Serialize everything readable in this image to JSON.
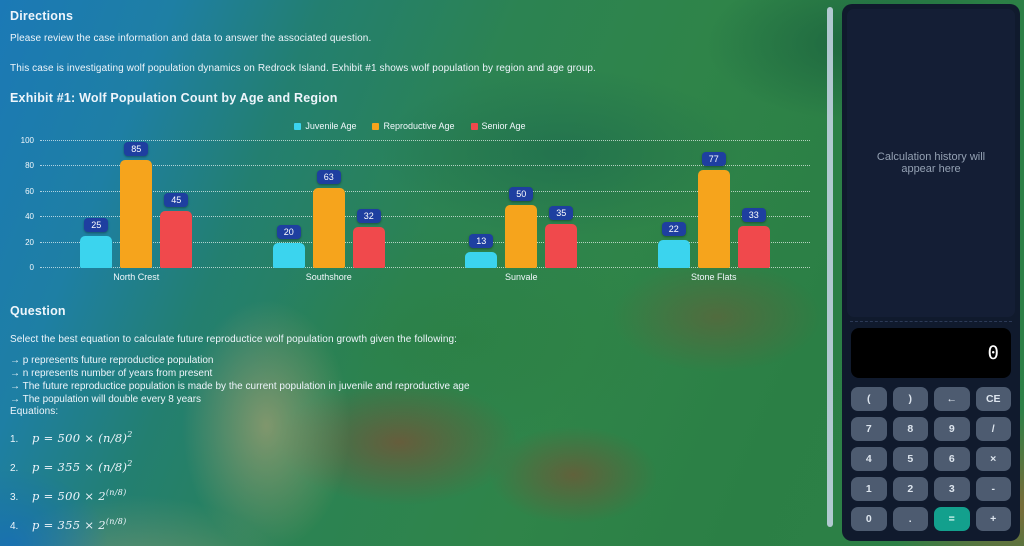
{
  "directions": {
    "title": "Directions",
    "line1": "Please review the case information and data to answer the associated question.",
    "line2": "This case is investigating wolf population dynamics on Redrock Island. Exhibit #1 shows wolf population by region and age group."
  },
  "exhibit": {
    "title": "Exhibit #1: Wolf Population Count by Age and Region"
  },
  "chart_data": {
    "type": "bar",
    "title": "Exhibit #1: Wolf Population Count by Age and Region",
    "categories": [
      "North Crest",
      "Southshore",
      "Sunvale",
      "Stone Flats"
    ],
    "series": [
      {
        "name": "Juvenile Age",
        "color": "#3bd4ee",
        "values": [
          25,
          20,
          13,
          22
        ]
      },
      {
        "name": "Reproductive Age",
        "color": "#f6a41c",
        "values": [
          85,
          63,
          50,
          77
        ]
      },
      {
        "name": "Senior Age",
        "color": "#f0494c",
        "values": [
          45,
          32,
          35,
          33
        ]
      }
    ],
    "ylim": [
      0,
      100
    ],
    "yticks": [
      0,
      20,
      40,
      60,
      80,
      100
    ],
    "grid": "horizontal-dotted",
    "legend_position": "top",
    "value_label_badge_color": "#1e3fa0"
  },
  "question": {
    "title": "Question",
    "prompt": "Select the best equation to calculate future reproductice wolf population growth given the following:",
    "bullets": [
      "→ p represents future reproductice population",
      "→ n represents number of years from present",
      "→ The future reproductice population is made by the current population in juvenile and reproductive age",
      "→ The population will double every 8 years"
    ],
    "equations_label": "Equations:",
    "equations": [
      {
        "label": "1.",
        "body": "p = 500 × (n/8)",
        "exp": "2"
      },
      {
        "label": "2.",
        "body": "p = 355 × (n/8)",
        "exp": "2"
      },
      {
        "label": "3.",
        "body": "p = 500 × 2",
        "exp": "(n/8)"
      },
      {
        "label": "4.",
        "body": "p = 355 × 2",
        "exp": "(n/8)"
      }
    ]
  },
  "calculator": {
    "history_placeholder": "Calculation history will appear here",
    "display_value": "0",
    "accent_color": "#13a08d",
    "buttons": [
      {
        "label": "("
      },
      {
        "label": ")"
      },
      {
        "label": "←"
      },
      {
        "label": "CE"
      },
      {
        "label": "7"
      },
      {
        "label": "8"
      },
      {
        "label": "9"
      },
      {
        "label": "/"
      },
      {
        "label": "4"
      },
      {
        "label": "5"
      },
      {
        "label": "6"
      },
      {
        "label": "×"
      },
      {
        "label": "1"
      },
      {
        "label": "2"
      },
      {
        "label": "3"
      },
      {
        "label": "-"
      },
      {
        "label": "0"
      },
      {
        "label": "."
      },
      {
        "label": "=",
        "variant": "accent"
      },
      {
        "label": "+"
      }
    ]
  }
}
